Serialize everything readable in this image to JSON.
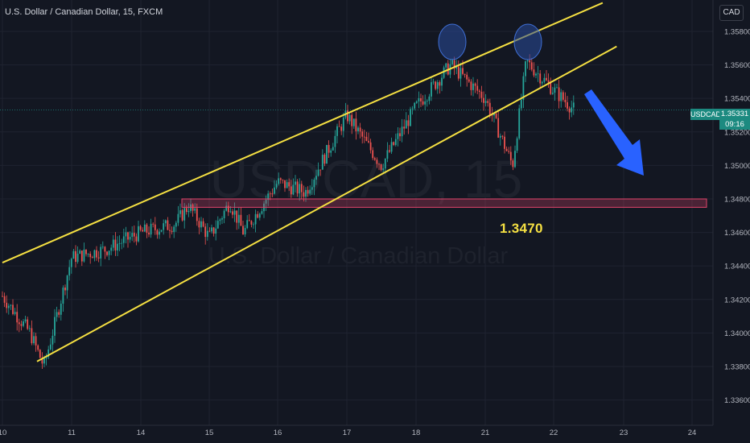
{
  "header": {
    "title": "U.S. Dollar / Canadian Dollar, 15, FXCM",
    "currency_button": "CAD"
  },
  "watermark": {
    "symbol": "USDCAD, 15",
    "name": "U.S. Dollar / Canadian Dollar"
  },
  "price_tag": {
    "symbol": "USDCAD",
    "price": "1.35331",
    "countdown": "09:16"
  },
  "annotation": {
    "level_label": "1.3470"
  },
  "colors": {
    "background": "#131722",
    "grid": "#1f2330",
    "channel": "#f5e042",
    "level_zone_border": "#e0456b",
    "arrow": "#2962ff",
    "top_marker": "#2a4d9c",
    "candle_up": "#26a69a",
    "candle_down": "#ef5350"
  },
  "chart_data": {
    "type": "candlestick",
    "title": "U.S. Dollar / Canadian Dollar, 15, FXCM",
    "x_tick_labels": [
      "10",
      "11",
      "14",
      "15",
      "16",
      "17",
      "18",
      "21",
      "22",
      "23",
      "24"
    ],
    "y_tick_labels": [
      "1.35800",
      "1.35600",
      "1.35400",
      "1.35200",
      "1.35000",
      "1.34800",
      "1.34600",
      "1.34400",
      "1.34200",
      "1.34000",
      "1.33800",
      "1.33600"
    ],
    "ylim": [
      1.3355,
      1.3592
    ],
    "grid": true,
    "last_price": 1.35331,
    "price_path": [
      {
        "x": "10",
        "y": 1.3422
      },
      {
        "x": "10.4",
        "y": 1.34
      },
      {
        "x": "10.6",
        "y": 1.338
      },
      {
        "x": "11",
        "y": 1.3445
      },
      {
        "x": "11.5",
        "y": 1.345
      },
      {
        "x": "14",
        "y": 1.346
      },
      {
        "x": "14.5",
        "y": 1.3465
      },
      {
        "x": "14.7",
        "y": 1.3476
      },
      {
        "x": "15",
        "y": 1.3457
      },
      {
        "x": "15.3",
        "y": 1.3478
      },
      {
        "x": "15.5",
        "y": 1.346
      },
      {
        "x": "16",
        "y": 1.349
      },
      {
        "x": "16.4",
        "y": 1.3484
      },
      {
        "x": "17",
        "y": 1.353
      },
      {
        "x": "17.5",
        "y": 1.35
      },
      {
        "x": "18",
        "y": 1.3535
      },
      {
        "x": "18.5",
        "y": 1.356
      },
      {
        "x": "21",
        "y": 1.354
      },
      {
        "x": "21.4",
        "y": 1.35
      },
      {
        "x": "21.6",
        "y": 1.3562
      },
      {
        "x": "22",
        "y": 1.3545
      },
      {
        "x": "22.3",
        "y": 1.3533
      }
    ],
    "annotations": {
      "channel_upper": [
        {
          "x": "10",
          "y": 1.3442
        },
        {
          "x": "22.7",
          "y": 1.3597
        }
      ],
      "channel_lower": [
        {
          "x": "10.5",
          "y": 1.3383
        },
        {
          "x": "22.9",
          "y": 1.3571
        }
      ],
      "horizontal_zone": {
        "y_low": 1.3475,
        "y_high": 1.348,
        "label": "1.3470"
      },
      "top_markers": [
        "18.5",
        "21.6"
      ],
      "forecast_arrow": "down"
    }
  }
}
